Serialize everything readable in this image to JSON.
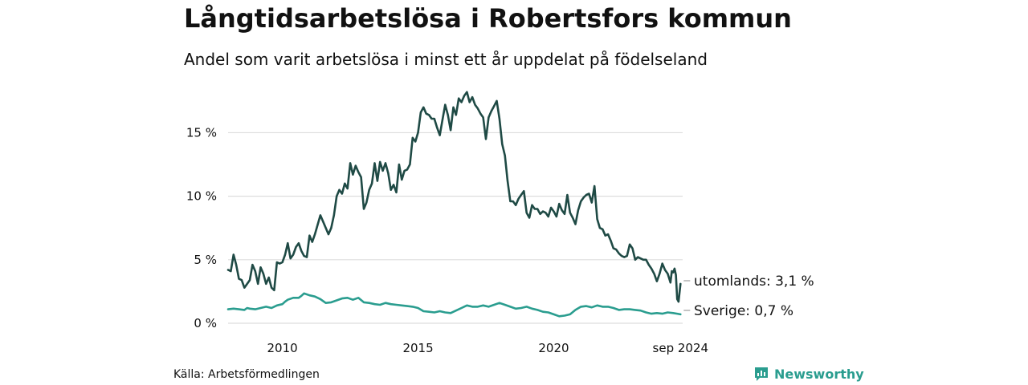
{
  "header": {
    "title": "Långtidsarbetslösa i Robertsfors kommun",
    "subtitle": "Andel som varit arbetslösa i minst ett år uppdelat på födelseland"
  },
  "footer": {
    "source": "Källa: Arbetsförmedlingen",
    "brand": "Newsworthy",
    "brand_icon": "bar-chart-speech-bubble-icon"
  },
  "colors": {
    "utomlands": "#1f4a45",
    "sverige": "#2a9d8f",
    "grid": "#dddddd",
    "brand": "#2a9d8f"
  },
  "chart_data": {
    "type": "line",
    "x_unit": "year (fractional)",
    "x_ticks": [
      {
        "value": 2010.0,
        "label": "2010"
      },
      {
        "value": 2015.0,
        "label": "2015"
      },
      {
        "value": 2020.0,
        "label": "2020"
      },
      {
        "value": 2024.67,
        "label": "sep 2024"
      }
    ],
    "y_ticks": [
      {
        "value": 0,
        "label": "0 %"
      },
      {
        "value": 5,
        "label": "5 %"
      },
      {
        "value": 10,
        "label": "10 %"
      },
      {
        "value": 15,
        "label": "15 %"
      }
    ],
    "xlim": [
      2008.0,
      2024.75
    ],
    "ylim": [
      0,
      18.5
    ],
    "grid": "horizontal",
    "series": [
      {
        "name": "utomlands",
        "end_label": "utomlands: 3,1 %",
        "points": [
          [
            2008.0,
            4.2
          ],
          [
            2008.1,
            4.1
          ],
          [
            2008.2,
            5.4
          ],
          [
            2008.3,
            4.6
          ],
          [
            2008.4,
            3.5
          ],
          [
            2008.5,
            3.4
          ],
          [
            2008.6,
            2.8
          ],
          [
            2008.8,
            3.4
          ],
          [
            2008.9,
            4.6
          ],
          [
            2009.0,
            4.1
          ],
          [
            2009.1,
            3.1
          ],
          [
            2009.2,
            4.4
          ],
          [
            2009.3,
            3.9
          ],
          [
            2009.4,
            3.1
          ],
          [
            2009.5,
            3.6
          ],
          [
            2009.6,
            2.8
          ],
          [
            2009.7,
            2.6
          ],
          [
            2009.8,
            4.8
          ],
          [
            2009.9,
            4.7
          ],
          [
            2010.0,
            4.8
          ],
          [
            2010.1,
            5.4
          ],
          [
            2010.2,
            6.3
          ],
          [
            2010.3,
            5.1
          ],
          [
            2010.4,
            5.4
          ],
          [
            2010.5,
            6.0
          ],
          [
            2010.6,
            6.3
          ],
          [
            2010.7,
            5.7
          ],
          [
            2010.8,
            5.3
          ],
          [
            2010.9,
            5.2
          ],
          [
            2011.0,
            6.9
          ],
          [
            2011.1,
            6.4
          ],
          [
            2011.2,
            7.0
          ],
          [
            2011.4,
            8.5
          ],
          [
            2011.5,
            8.0
          ],
          [
            2011.7,
            7.0
          ],
          [
            2011.8,
            7.5
          ],
          [
            2011.9,
            8.5
          ],
          [
            2012.0,
            10.0
          ],
          [
            2012.1,
            10.5
          ],
          [
            2012.2,
            10.2
          ],
          [
            2012.3,
            11.0
          ],
          [
            2012.4,
            10.6
          ],
          [
            2012.5,
            12.6
          ],
          [
            2012.6,
            11.7
          ],
          [
            2012.7,
            12.4
          ],
          [
            2012.8,
            11.9
          ],
          [
            2012.9,
            11.5
          ],
          [
            2013.0,
            9.0
          ],
          [
            2013.1,
            9.5
          ],
          [
            2013.2,
            10.5
          ],
          [
            2013.3,
            11.0
          ],
          [
            2013.4,
            12.6
          ],
          [
            2013.5,
            11.2
          ],
          [
            2013.6,
            12.7
          ],
          [
            2013.7,
            12.0
          ],
          [
            2013.8,
            12.6
          ],
          [
            2013.9,
            11.8
          ],
          [
            2014.0,
            10.5
          ],
          [
            2014.1,
            10.9
          ],
          [
            2014.2,
            10.3
          ],
          [
            2014.3,
            12.5
          ],
          [
            2014.4,
            11.3
          ],
          [
            2014.5,
            12.0
          ],
          [
            2014.6,
            12.1
          ],
          [
            2014.7,
            12.5
          ],
          [
            2014.8,
            14.6
          ],
          [
            2014.9,
            14.3
          ],
          [
            2015.0,
            15.0
          ],
          [
            2015.1,
            16.6
          ],
          [
            2015.2,
            17.0
          ],
          [
            2015.3,
            16.5
          ],
          [
            2015.4,
            16.4
          ],
          [
            2015.5,
            16.1
          ],
          [
            2015.6,
            16.1
          ],
          [
            2015.7,
            15.4
          ],
          [
            2015.8,
            14.8
          ],
          [
            2015.9,
            16.0
          ],
          [
            2016.0,
            17.2
          ],
          [
            2016.1,
            16.4
          ],
          [
            2016.2,
            15.2
          ],
          [
            2016.3,
            17.0
          ],
          [
            2016.4,
            16.4
          ],
          [
            2016.5,
            17.7
          ],
          [
            2016.6,
            17.4
          ],
          [
            2016.7,
            17.9
          ],
          [
            2016.8,
            18.2
          ],
          [
            2016.9,
            17.4
          ],
          [
            2017.0,
            17.8
          ],
          [
            2017.1,
            17.2
          ],
          [
            2017.2,
            16.9
          ],
          [
            2017.3,
            16.5
          ],
          [
            2017.4,
            16.2
          ],
          [
            2017.5,
            14.5
          ],
          [
            2017.6,
            16.2
          ],
          [
            2017.7,
            16.7
          ],
          [
            2017.8,
            17.1
          ],
          [
            2017.9,
            17.5
          ],
          [
            2018.0,
            16.1
          ],
          [
            2018.1,
            14.1
          ],
          [
            2018.2,
            13.2
          ],
          [
            2018.3,
            11.2
          ],
          [
            2018.4,
            9.6
          ],
          [
            2018.5,
            9.6
          ],
          [
            2018.6,
            9.3
          ],
          [
            2018.7,
            9.8
          ],
          [
            2018.8,
            10.1
          ],
          [
            2018.9,
            10.4
          ],
          [
            2019.0,
            8.7
          ],
          [
            2019.1,
            8.3
          ],
          [
            2019.2,
            9.3
          ],
          [
            2019.3,
            9.0
          ],
          [
            2019.4,
            9.0
          ],
          [
            2019.5,
            8.6
          ],
          [
            2019.6,
            8.8
          ],
          [
            2019.7,
            8.7
          ],
          [
            2019.8,
            8.4
          ],
          [
            2019.9,
            9.1
          ],
          [
            2020.0,
            8.8
          ],
          [
            2020.1,
            8.4
          ],
          [
            2020.2,
            9.4
          ],
          [
            2020.3,
            8.9
          ],
          [
            2020.4,
            8.6
          ],
          [
            2020.5,
            10.1
          ],
          [
            2020.6,
            8.7
          ],
          [
            2020.7,
            8.3
          ],
          [
            2020.8,
            7.8
          ],
          [
            2020.9,
            8.9
          ],
          [
            2021.0,
            9.6
          ],
          [
            2021.1,
            9.9
          ],
          [
            2021.2,
            10.1
          ],
          [
            2021.3,
            10.2
          ],
          [
            2021.4,
            9.5
          ],
          [
            2021.5,
            10.8
          ],
          [
            2021.6,
            8.2
          ],
          [
            2021.7,
            7.5
          ],
          [
            2021.8,
            7.4
          ],
          [
            2021.9,
            6.9
          ],
          [
            2022.0,
            7.0
          ],
          [
            2022.1,
            6.5
          ],
          [
            2022.2,
            5.9
          ],
          [
            2022.3,
            5.8
          ],
          [
            2022.4,
            5.5
          ],
          [
            2022.5,
            5.3
          ],
          [
            2022.6,
            5.2
          ],
          [
            2022.7,
            5.3
          ],
          [
            2022.8,
            6.2
          ],
          [
            2022.9,
            5.9
          ],
          [
            2023.0,
            5.0
          ],
          [
            2023.1,
            5.2
          ],
          [
            2023.2,
            5.1
          ],
          [
            2023.3,
            5.0
          ],
          [
            2023.4,
            5.0
          ],
          [
            2023.5,
            4.6
          ],
          [
            2023.6,
            4.3
          ],
          [
            2023.7,
            3.9
          ],
          [
            2023.8,
            3.3
          ],
          [
            2023.9,
            3.9
          ],
          [
            2024.0,
            4.7
          ],
          [
            2024.1,
            4.2
          ],
          [
            2024.2,
            3.9
          ],
          [
            2024.3,
            3.2
          ],
          [
            2024.35,
            4.1
          ],
          [
            2024.4,
            4.0
          ],
          [
            2024.45,
            4.3
          ],
          [
            2024.5,
            3.8
          ],
          [
            2024.55,
            1.9
          ],
          [
            2024.6,
            1.7
          ],
          [
            2024.67,
            3.1
          ]
        ]
      },
      {
        "name": "Sverige",
        "end_label": "Sverige: 0,7 %",
        "points": [
          [
            2008.0,
            1.1
          ],
          [
            2008.2,
            1.15
          ],
          [
            2008.4,
            1.1
          ],
          [
            2008.6,
            1.05
          ],
          [
            2008.7,
            1.2
          ],
          [
            2008.8,
            1.15
          ],
          [
            2009.0,
            1.1
          ],
          [
            2009.2,
            1.2
          ],
          [
            2009.4,
            1.3
          ],
          [
            2009.6,
            1.2
          ],
          [
            2009.8,
            1.4
          ],
          [
            2010.0,
            1.5
          ],
          [
            2010.1,
            1.7
          ],
          [
            2010.2,
            1.85
          ],
          [
            2010.4,
            2.0
          ],
          [
            2010.6,
            2.0
          ],
          [
            2010.7,
            2.15
          ],
          [
            2010.8,
            2.35
          ],
          [
            2011.0,
            2.2
          ],
          [
            2011.2,
            2.1
          ],
          [
            2011.4,
            1.9
          ],
          [
            2011.6,
            1.6
          ],
          [
            2011.8,
            1.65
          ],
          [
            2012.0,
            1.8
          ],
          [
            2012.2,
            1.95
          ],
          [
            2012.4,
            2.0
          ],
          [
            2012.6,
            1.85
          ],
          [
            2012.8,
            2.0
          ],
          [
            2013.0,
            1.65
          ],
          [
            2013.2,
            1.6
          ],
          [
            2013.4,
            1.5
          ],
          [
            2013.6,
            1.45
          ],
          [
            2013.8,
            1.6
          ],
          [
            2014.0,
            1.5
          ],
          [
            2014.2,
            1.45
          ],
          [
            2014.4,
            1.4
          ],
          [
            2014.6,
            1.35
          ],
          [
            2014.8,
            1.3
          ],
          [
            2015.0,
            1.2
          ],
          [
            2015.2,
            0.95
          ],
          [
            2015.4,
            0.9
          ],
          [
            2015.6,
            0.85
          ],
          [
            2015.8,
            0.95
          ],
          [
            2016.0,
            0.85
          ],
          [
            2016.2,
            0.8
          ],
          [
            2016.4,
            1.0
          ],
          [
            2016.6,
            1.2
          ],
          [
            2016.8,
            1.4
          ],
          [
            2017.0,
            1.3
          ],
          [
            2017.2,
            1.3
          ],
          [
            2017.4,
            1.4
          ],
          [
            2017.6,
            1.3
          ],
          [
            2017.8,
            1.45
          ],
          [
            2018.0,
            1.6
          ],
          [
            2018.2,
            1.45
          ],
          [
            2018.4,
            1.3
          ],
          [
            2018.6,
            1.15
          ],
          [
            2018.8,
            1.2
          ],
          [
            2019.0,
            1.3
          ],
          [
            2019.2,
            1.15
          ],
          [
            2019.4,
            1.05
          ],
          [
            2019.6,
            0.9
          ],
          [
            2019.8,
            0.85
          ],
          [
            2020.0,
            0.7
          ],
          [
            2020.2,
            0.55
          ],
          [
            2020.4,
            0.6
          ],
          [
            2020.6,
            0.7
          ],
          [
            2020.8,
            1.05
          ],
          [
            2021.0,
            1.3
          ],
          [
            2021.2,
            1.35
          ],
          [
            2021.4,
            1.25
          ],
          [
            2021.6,
            1.4
          ],
          [
            2021.8,
            1.3
          ],
          [
            2022.0,
            1.3
          ],
          [
            2022.2,
            1.2
          ],
          [
            2022.4,
            1.05
          ],
          [
            2022.6,
            1.1
          ],
          [
            2022.8,
            1.1
          ],
          [
            2023.0,
            1.05
          ],
          [
            2023.2,
            1.0
          ],
          [
            2023.4,
            0.85
          ],
          [
            2023.6,
            0.75
          ],
          [
            2023.8,
            0.8
          ],
          [
            2024.0,
            0.75
          ],
          [
            2024.2,
            0.85
          ],
          [
            2024.4,
            0.8
          ],
          [
            2024.55,
            0.75
          ],
          [
            2024.67,
            0.7
          ]
        ]
      }
    ]
  }
}
